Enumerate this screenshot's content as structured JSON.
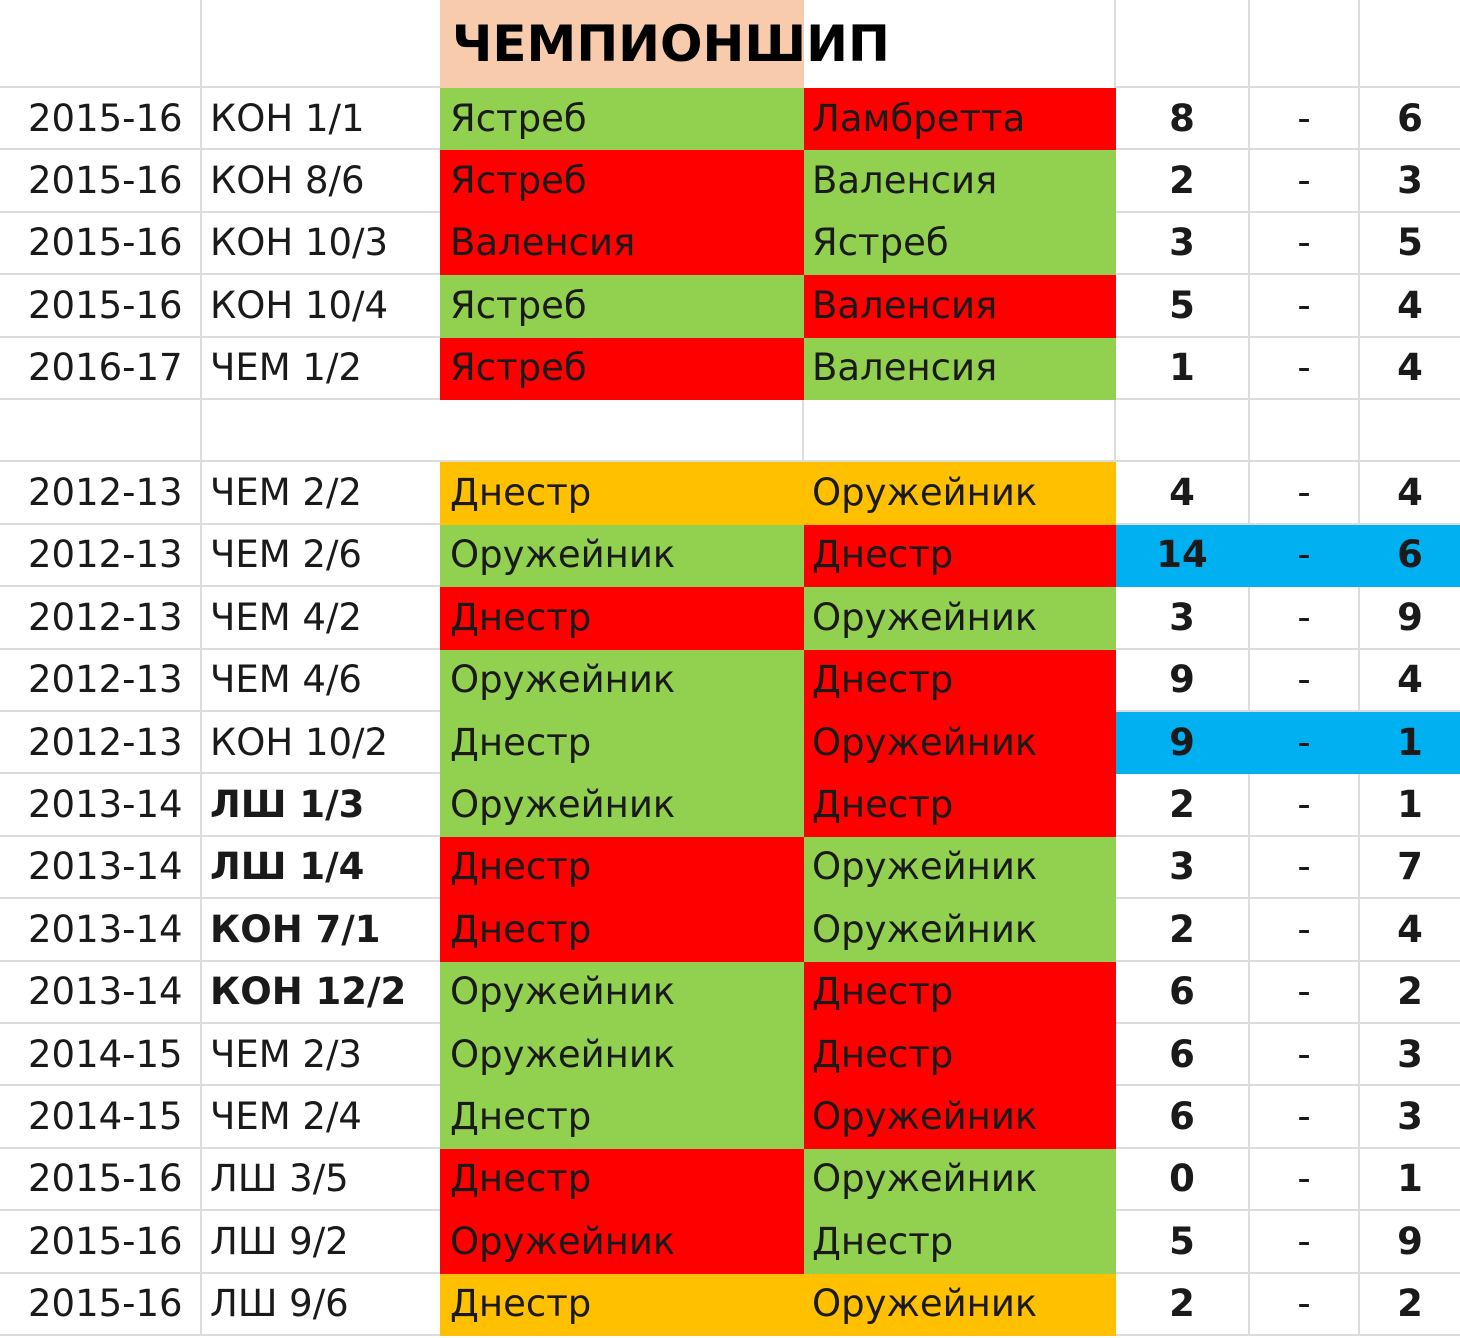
{
  "header": {
    "title": "ЧЕМПИОНШИП"
  },
  "colors": {
    "win": "#92d050",
    "loss": "#ff0000",
    "draw": "#ffc000",
    "highlight": "#00b0f0",
    "title_bg": "#f8cbad"
  },
  "group1": [
    {
      "season": "2015-16",
      "stage": "КОН 1/1",
      "stage_bold": false,
      "home": "Ястреб",
      "away": "Ламбретта",
      "home_score": "8",
      "dash": "-",
      "away_score": "6",
      "home_color": "green",
      "away_color": "red",
      "highlight": false
    },
    {
      "season": "2015-16",
      "stage": "КОН 8/6",
      "stage_bold": false,
      "home": "Ястреб",
      "away": "Валенсия",
      "home_score": "2",
      "dash": "-",
      "away_score": "3",
      "home_color": "red",
      "away_color": "green",
      "highlight": false
    },
    {
      "season": "2015-16",
      "stage": "КОН 10/3",
      "stage_bold": false,
      "home": "Валенсия",
      "away": "Ястреб",
      "home_score": "3",
      "dash": "-",
      "away_score": "5",
      "home_color": "red",
      "away_color": "green",
      "highlight": false
    },
    {
      "season": "2015-16",
      "stage": "КОН 10/4",
      "stage_bold": false,
      "home": "Ястреб",
      "away": "Валенсия",
      "home_score": "5",
      "dash": "-",
      "away_score": "4",
      "home_color": "green",
      "away_color": "red",
      "highlight": false
    },
    {
      "season": "2016-17",
      "stage": "ЧЕМ 1/2",
      "stage_bold": false,
      "home": "Ястреб",
      "away": "Валенсия",
      "home_score": "1",
      "dash": "-",
      "away_score": "4",
      "home_color": "red",
      "away_color": "green",
      "highlight": false
    }
  ],
  "group2": [
    {
      "season": "2012-13",
      "stage": "ЧЕМ 2/2",
      "stage_bold": false,
      "home": "Днестр",
      "away": "Оружейник",
      "home_score": "4",
      "dash": "-",
      "away_score": "4",
      "home_color": "orange",
      "away_color": "orange",
      "highlight": false
    },
    {
      "season": "2012-13",
      "stage": "ЧЕМ 2/6",
      "stage_bold": false,
      "home": "Оружейник",
      "away": "Днестр",
      "home_score": "14",
      "dash": "-",
      "away_score": "6",
      "home_color": "green",
      "away_color": "red",
      "highlight": true
    },
    {
      "season": "2012-13",
      "stage": "ЧЕМ 4/2",
      "stage_bold": false,
      "home": "Днестр",
      "away": "Оружейник",
      "home_score": "3",
      "dash": "-",
      "away_score": "9",
      "home_color": "red",
      "away_color": "green",
      "highlight": false
    },
    {
      "season": "2012-13",
      "stage": "ЧЕМ 4/6",
      "stage_bold": false,
      "home": "Оружейник",
      "away": "Днестр",
      "home_score": "9",
      "dash": "-",
      "away_score": "4",
      "home_color": "green",
      "away_color": "red",
      "highlight": false
    },
    {
      "season": "2012-13",
      "stage": "КОН 10/2",
      "stage_bold": false,
      "home": "Днестр",
      "away": "Оружейник",
      "home_score": "9",
      "dash": "-",
      "away_score": "1",
      "home_color": "green",
      "away_color": "red",
      "highlight": true
    },
    {
      "season": "2013-14",
      "stage": "ЛШ 1/3",
      "stage_bold": true,
      "home": "Оружейник",
      "away": "Днестр",
      "home_score": "2",
      "dash": "-",
      "away_score": "1",
      "home_color": "green",
      "away_color": "red",
      "highlight": false
    },
    {
      "season": "2013-14",
      "stage": "ЛШ 1/4",
      "stage_bold": true,
      "home": "Днестр",
      "away": "Оружейник",
      "home_score": "3",
      "dash": "-",
      "away_score": "7",
      "home_color": "red",
      "away_color": "green",
      "highlight": false
    },
    {
      "season": "2013-14",
      "stage": "КОН 7/1",
      "stage_bold": true,
      "home": "Днестр",
      "away": "Оружейник",
      "home_score": "2",
      "dash": "-",
      "away_score": "4",
      "home_color": "red",
      "away_color": "green",
      "highlight": false
    },
    {
      "season": "2013-14",
      "stage": "КОН 12/2",
      "stage_bold": true,
      "home": "Оружейник",
      "away": "Днестр",
      "home_score": "6",
      "dash": "-",
      "away_score": "2",
      "home_color": "green",
      "away_color": "red",
      "highlight": false
    },
    {
      "season": "2014-15",
      "stage": "ЧЕМ 2/3",
      "stage_bold": false,
      "home": "Оружейник",
      "away": "Днестр",
      "home_score": "6",
      "dash": "-",
      "away_score": "3",
      "home_color": "green",
      "away_color": "red",
      "highlight": false
    },
    {
      "season": "2014-15",
      "stage": "ЧЕМ 2/4",
      "stage_bold": false,
      "home": "Днестр",
      "away": "Оружейник",
      "home_score": "6",
      "dash": "-",
      "away_score": "3",
      "home_color": "green",
      "away_color": "red",
      "highlight": false
    },
    {
      "season": "2015-16",
      "stage": "ЛШ 3/5",
      "stage_bold": false,
      "home": "Днестр",
      "away": "Оружейник",
      "home_score": "0",
      "dash": "-",
      "away_score": "1",
      "home_color": "red",
      "away_color": "green",
      "highlight": false
    },
    {
      "season": "2015-16",
      "stage": "ЛШ 9/2",
      "stage_bold": false,
      "home": "Оружейник",
      "away": "Днестр",
      "home_score": "5",
      "dash": "-",
      "away_score": "9",
      "home_color": "red",
      "away_color": "green",
      "highlight": false
    },
    {
      "season": "2015-16",
      "stage": "ЛШ 9/6",
      "stage_bold": false,
      "home": "Днестр",
      "away": "Оружейник",
      "home_score": "2",
      "dash": "-",
      "away_score": "2",
      "home_color": "orange",
      "away_color": "orange",
      "highlight": false
    }
  ]
}
